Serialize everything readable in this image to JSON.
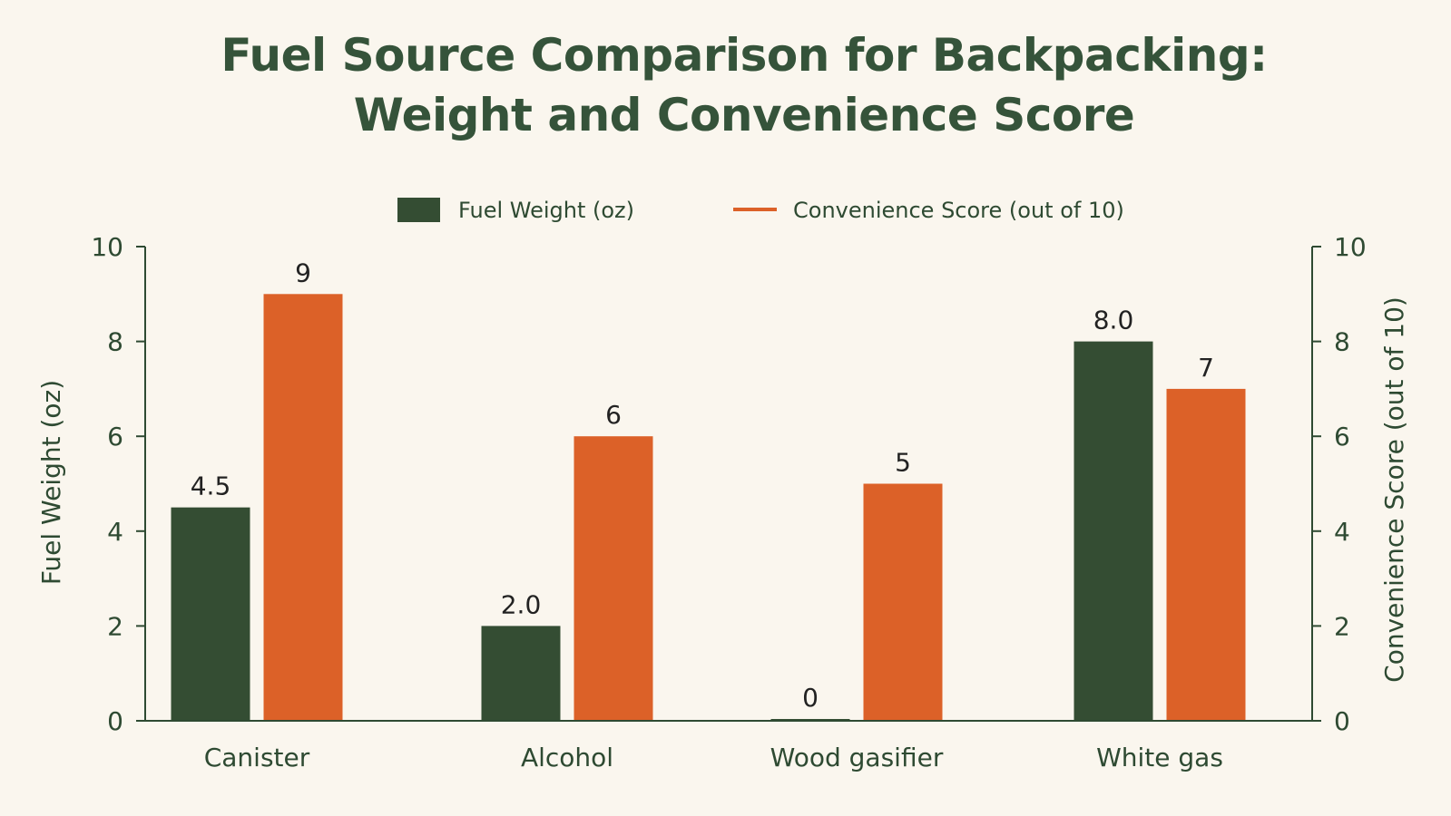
{
  "chart_data": {
    "type": "bar",
    "title_lines": [
      "Fuel Source Comparison for Backpacking:",
      "Weight and Convenience Score"
    ],
    "categories": [
      "Canister",
      "Alcohol",
      "Wood gasifier",
      "White gas"
    ],
    "series": [
      {
        "name": "Fuel Weight (oz)",
        "values": [
          4.5,
          2.0,
          0,
          8.0
        ],
        "labels": [
          "4.5",
          "2.0",
          "0",
          "8.0"
        ],
        "color": "#344d33",
        "axis": "left"
      },
      {
        "name": "Convenience Score (out of 10)",
        "values": [
          9,
          6,
          5,
          7
        ],
        "labels": [
          "9",
          "6",
          "5",
          "7"
        ],
        "color": "#dc6128",
        "axis": "right"
      }
    ],
    "ylabel": "Fuel Weight (oz)",
    "y2label": "Convenience Score (out of 10)",
    "ylim": [
      0,
      10
    ],
    "y2lim": [
      0,
      10
    ],
    "yticks": [
      "0",
      "2",
      "4",
      "6",
      "8",
      "10"
    ],
    "y2ticks": [
      "0",
      "2",
      "4",
      "6",
      "8",
      "10"
    ],
    "grid": false,
    "legend_position": "top-center"
  }
}
